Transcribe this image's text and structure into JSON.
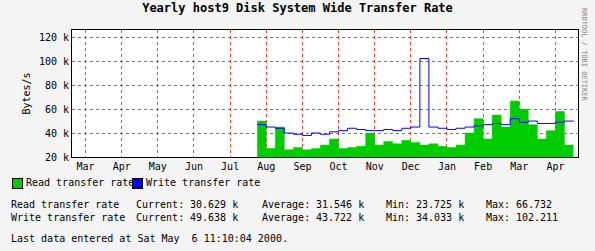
{
  "chart_data": {
    "type": "line",
    "title": "Yearly host9 Disk System Wide Transfer Rate",
    "y_label": "Bytes/s",
    "credit": "RRDTOOL / TOBI OETIKER",
    "categories": [
      null,
      "Mar",
      null,
      null,
      null,
      "Apr",
      null,
      null,
      null,
      "May",
      null,
      null,
      null,
      "Jun",
      null,
      null,
      null,
      "Jul",
      null,
      null,
      null,
      "Aug",
      null,
      null,
      null,
      "Sep",
      null,
      null,
      null,
      "Oct",
      null,
      null,
      null,
      "Nov",
      null,
      null,
      null,
      "Dec",
      null,
      null,
      null,
      "Jan",
      null,
      null,
      null,
      "Feb",
      null,
      null,
      null,
      "Mar",
      null,
      null,
      null,
      "Apr",
      null,
      null
    ],
    "series": [
      {
        "name": "Read transfer rate",
        "type": "area",
        "color": "#00cc00",
        "values": [
          null,
          null,
          null,
          null,
          null,
          null,
          null,
          null,
          null,
          null,
          null,
          null,
          null,
          null,
          null,
          null,
          null,
          null,
          null,
          null,
          50000,
          27000,
          45000,
          26000,
          28000,
          26000,
          27000,
          30000,
          35000,
          27000,
          28000,
          29000,
          40000,
          30000,
          33000,
          31000,
          34000,
          32000,
          30000,
          31000,
          29000,
          28000,
          30000,
          40000,
          52000,
          35000,
          55000,
          45000,
          66732,
          60000,
          47000,
          35000,
          42000,
          58000,
          30000,
          30629
        ]
      },
      {
        "name": "Write transfer rate",
        "type": "line",
        "color": "#0000ff",
        "values": [
          null,
          null,
          null,
          null,
          null,
          null,
          null,
          null,
          null,
          null,
          null,
          null,
          null,
          null,
          null,
          null,
          null,
          null,
          null,
          null,
          47000,
          45000,
          44000,
          40000,
          39000,
          38000,
          40000,
          39000,
          41000,
          42000,
          44000,
          43000,
          42000,
          42000,
          43000,
          42000,
          44000,
          45000,
          102211,
          45000,
          44000,
          43000,
          44000,
          45000,
          46000,
          47000,
          48000,
          47000,
          52000,
          49000,
          50000,
          48000,
          48000,
          49000,
          50000,
          49638
        ]
      }
    ],
    "ylim": [
      20000,
      126000
    ],
    "yticks": [
      {
        "value": 20000,
        "label": "20 k"
      },
      {
        "value": 40000,
        "label": "40 k"
      },
      {
        "value": 60000,
        "label": "60 k"
      },
      {
        "value": 80000,
        "label": "80 k"
      },
      {
        "value": 100000,
        "label": "100 k"
      },
      {
        "value": 120000,
        "label": "120 k"
      }
    ],
    "grid": true,
    "legend": "bottom left",
    "stats": [
      {
        "label": "Read transfer rate",
        "current_label": "Current:",
        "current": "30.629 k",
        "average_label": "Average:",
        "average": "31.546 k",
        "min_label": "Min:",
        "min": "23.725 k",
        "max_label": "Max:",
        "max": "66.732"
      },
      {
        "label": "Write transfer rate",
        "current_label": "Current:",
        "current": "49.638 k",
        "average_label": "Average:",
        "average": "43.722 k",
        "min_label": "Min:",
        "min": "34.033 k",
        "max_label": "Max:",
        "max": "102.211"
      }
    ],
    "last_update": "Last data entered at Sat May  6 11:10:04 2000."
  }
}
